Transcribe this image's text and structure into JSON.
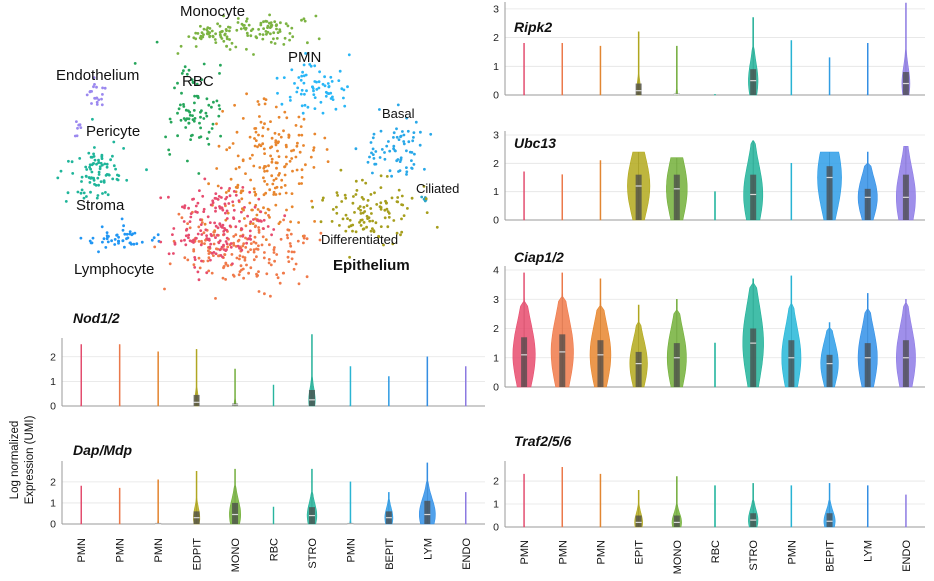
{
  "chart_data": {
    "type": "violin",
    "tsne": {
      "clusters": [
        {
          "label": "Monocyte",
          "color": "#7cb342"
        },
        {
          "label": "PMN",
          "color": "#29b6f6"
        },
        {
          "label": "RBC",
          "color": "#26a65b"
        },
        {
          "label": "Endothelium",
          "color": "#9b88ef"
        },
        {
          "label": "Pericyte",
          "color": "#9b88ef"
        },
        {
          "label": "Stroma",
          "color": "#1fb59a"
        },
        {
          "label": "Lymphocyte",
          "color": "#2196f3"
        },
        {
          "label": "Basal",
          "color": "#29a8e8"
        },
        {
          "label": "Ciliated",
          "color": "#2aa5c8"
        },
        {
          "label": "Differentiated",
          "color": "#a69e1d"
        }
      ],
      "group_label": "Epithelium"
    },
    "y_axis_label_line1": "Log normalized",
    "y_axis_label_line2": "Expression (UMI)",
    "left_categories": [
      "PMN",
      "PMN",
      "PMN",
      "EDPIT",
      "MONO",
      "RBC",
      "STRO",
      "PMN",
      "BEPIT",
      "LYM",
      "ENDO"
    ],
    "right_categories": [
      "PMN",
      "PMN",
      "PMN",
      "EPIT",
      "MONO",
      "RBC",
      "STRO",
      "PMN",
      "BEPIT",
      "LYM",
      "ENDO"
    ],
    "colors": [
      "#e74c6f",
      "#f07a4a",
      "#e8862e",
      "#b3a91c",
      "#73b03a",
      "#22b8a0",
      "#22b39a",
      "#26b7d8",
      "#2e9ee8",
      "#3391e8",
      "#8e7be6"
    ],
    "panels": [
      {
        "gene": "Nod1/2",
        "column": "left",
        "yticks": [
          0,
          1,
          2
        ],
        "ylim": [
          0,
          2.6
        ],
        "max": [
          2.5,
          2.5,
          2.2,
          2.3,
          1.5,
          0.85,
          2.9,
          1.6,
          1.2,
          2.0,
          1.6
        ],
        "median": [
          0,
          0,
          0,
          0.15,
          0.05,
          0,
          0.25,
          0,
          0,
          0,
          0
        ],
        "q3": [
          0.02,
          0.02,
          0.02,
          0.45,
          0.1,
          0,
          0.65,
          0.02,
          0.02,
          0.02,
          0.02
        ],
        "peak": [
          0.03,
          0.03,
          0.03,
          0.12,
          0.06,
          0.02,
          0.2,
          0.03,
          0.03,
          0.03,
          0.03
        ]
      },
      {
        "gene": "Dap/Mdp",
        "column": "left",
        "yticks": [
          0,
          1,
          2
        ],
        "ylim": [
          0,
          2.8
        ],
        "max": [
          1.8,
          1.7,
          2.1,
          2.5,
          2.6,
          0.8,
          2.6,
          2.0,
          1.5,
          2.9,
          1.5
        ],
        "median": [
          0,
          0,
          0,
          0.3,
          0.45,
          0,
          0.4,
          0,
          0.3,
          0.45,
          0
        ],
        "q3": [
          0.02,
          0.02,
          0.05,
          0.6,
          1.0,
          0,
          0.8,
          0.05,
          0.6,
          1.1,
          0.02
        ],
        "peak": [
          0.03,
          0.03,
          0.04,
          0.2,
          0.35,
          0.02,
          0.3,
          0.04,
          0.25,
          0.5,
          0.03
        ]
      },
      {
        "gene": "Ripk2",
        "column": "right",
        "yticks": [
          0,
          1,
          2,
          3
        ],
        "ylim": [
          0,
          3.1
        ],
        "max": [
          1.8,
          1.8,
          1.7,
          2.2,
          1.7,
          0.02,
          2.7,
          1.9,
          1.3,
          1.8,
          3.2
        ],
        "median": [
          0,
          0,
          0,
          0.15,
          0.02,
          0,
          0.5,
          0,
          0,
          0,
          0.4
        ],
        "q3": [
          0.02,
          0.02,
          0.02,
          0.4,
          0.05,
          0,
          0.9,
          0.02,
          0.02,
          0.02,
          0.8
        ],
        "peak": [
          0.03,
          0.03,
          0.03,
          0.12,
          0.05,
          0.02,
          0.3,
          0.03,
          0.03,
          0.03,
          0.25
        ]
      },
      {
        "gene": "Ubc13",
        "column": "right",
        "yticks": [
          0,
          1,
          2,
          3
        ],
        "ylim": [
          0,
          3.0
        ],
        "max": [
          1.7,
          1.6,
          2.1,
          2.4,
          2.2,
          1.0,
          2.8,
          2.0,
          2.4,
          2.4,
          2.6
        ],
        "median": [
          0,
          0,
          0,
          1.2,
          1.1,
          0,
          0.9,
          0,
          1.5,
          0.8,
          0.8
        ],
        "q3": [
          0.02,
          0.02,
          0.02,
          1.6,
          1.6,
          0,
          1.6,
          0.02,
          1.9,
          1.1,
          1.6
        ],
        "peak": [
          0.03,
          0.03,
          0.03,
          0.7,
          0.65,
          0.02,
          0.6,
          0.03,
          0.75,
          0.6,
          0.6
        ]
      },
      {
        "gene": "Ciap1/2",
        "column": "right",
        "yticks": [
          0,
          1,
          2,
          3,
          4
        ],
        "ylim": [
          0,
          4.0
        ],
        "max": [
          3.9,
          3.9,
          3.7,
          2.8,
          3.0,
          1.5,
          3.7,
          3.8,
          2.2,
          3.2,
          3.0
        ],
        "median": [
          1.1,
          1.2,
          1.1,
          0.8,
          1.0,
          0,
          1.5,
          1.0,
          0.8,
          1.0,
          1.0
        ],
        "q3": [
          1.7,
          1.8,
          1.6,
          1.2,
          1.5,
          0,
          2.0,
          1.6,
          1.1,
          1.5,
          1.6
        ],
        "peak": [
          0.7,
          0.7,
          0.65,
          0.55,
          0.6,
          0.02,
          0.65,
          0.6,
          0.55,
          0.6,
          0.6
        ]
      },
      {
        "gene": "Traf2/5/6",
        "column": "right",
        "yticks": [
          0,
          1,
          2
        ],
        "ylim": [
          0,
          2.7
        ],
        "max": [
          2.3,
          2.6,
          2.3,
          1.6,
          2.2,
          1.8,
          1.9,
          1.8,
          1.9,
          1.8,
          1.4
        ],
        "median": [
          0,
          0,
          0,
          0.2,
          0.2,
          0,
          0.3,
          0,
          0.25,
          0,
          0
        ],
        "q3": [
          0.02,
          0.02,
          0.02,
          0.5,
          0.5,
          0,
          0.6,
          0.02,
          0.6,
          0.02,
          0.02
        ],
        "peak": [
          0.03,
          0.03,
          0.03,
          0.25,
          0.3,
          0.02,
          0.3,
          0.03,
          0.35,
          0.03,
          0.03
        ]
      }
    ]
  }
}
